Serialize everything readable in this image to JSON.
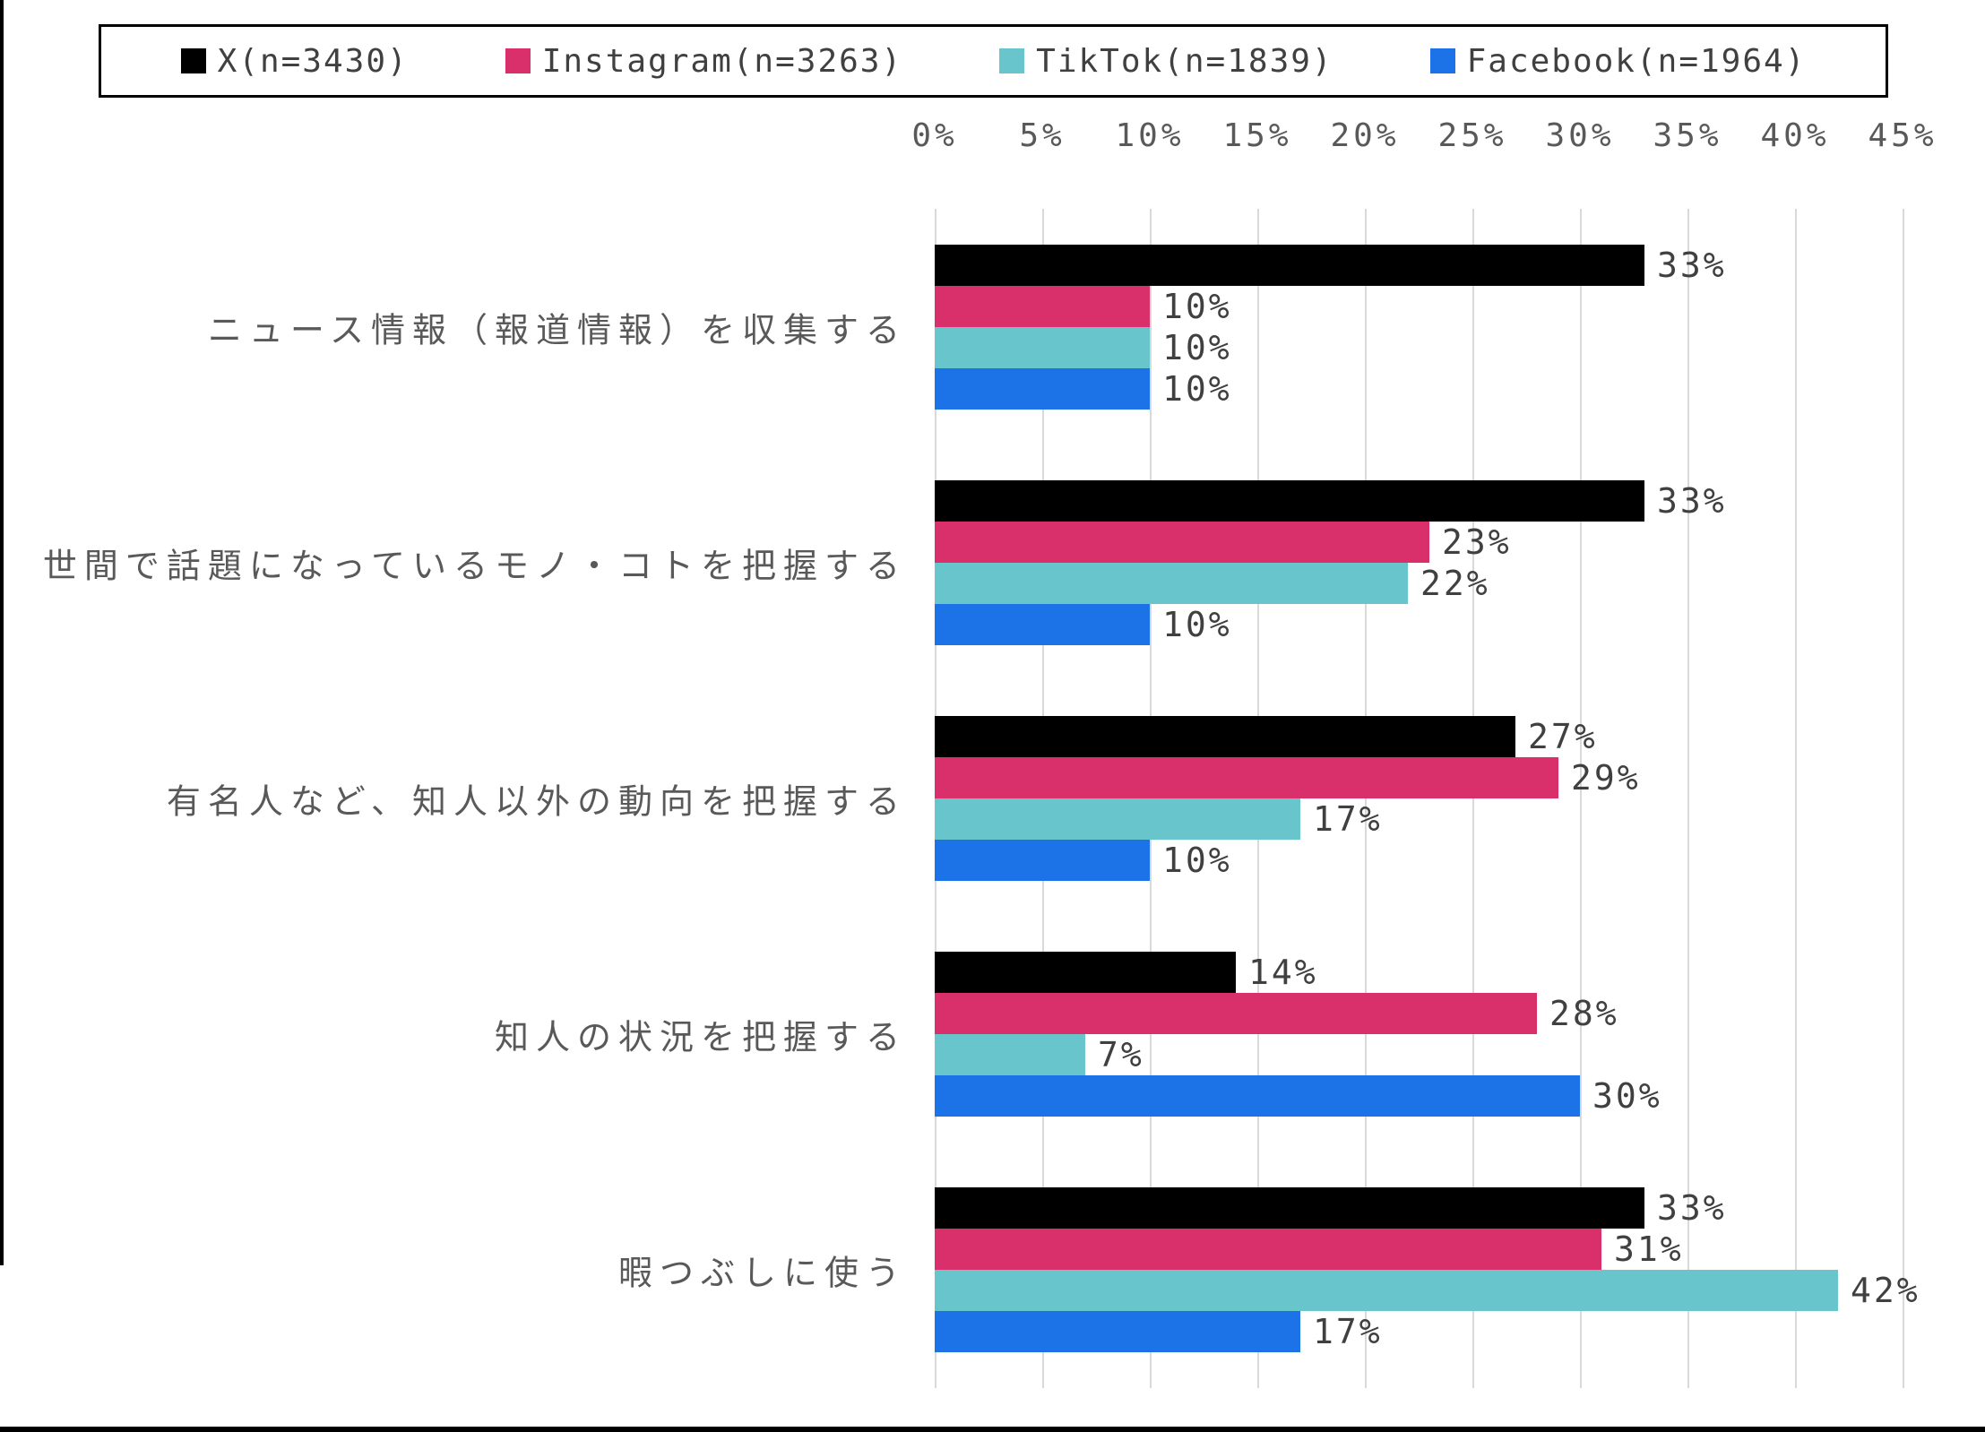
{
  "chart_data": {
    "type": "bar",
    "orientation": "horizontal",
    "title": "",
    "xlabel": "",
    "ylabel": "",
    "xlim": [
      0,
      45
    ],
    "grid": true,
    "legend_position": "top",
    "x_tick_labels": [
      "0%",
      "5%",
      "10%",
      "15%",
      "20%",
      "25%",
      "30%",
      "35%",
      "40%",
      "45%"
    ],
    "categories": [
      "ニュース情報（報道情報）を収集する",
      "世間で話題になっているモノ・コトを把握する",
      "有名人など、知人以外の動向を把握する",
      "知人の状況を把握する",
      "暇つぶしに使う"
    ],
    "series": [
      {
        "key": "x",
        "name": "X(n=3430)",
        "color": "#000000",
        "values": [
          33,
          33,
          27,
          14,
          33
        ]
      },
      {
        "key": "instagram",
        "name": "Instagram(n=3263)",
        "color": "#D9306B",
        "values": [
          10,
          23,
          29,
          28,
          31
        ]
      },
      {
        "key": "tiktok",
        "name": "TikTok(n=1839)",
        "color": "#68C5CB",
        "values": [
          10,
          22,
          17,
          7,
          42
        ]
      },
      {
        "key": "facebook",
        "name": "Facebook(n=1964)",
        "color": "#1C73E8",
        "values": [
          10,
          10,
          10,
          30,
          17
        ]
      }
    ],
    "data_labels": [
      [
        "33%",
        "10%",
        "10%",
        "10%"
      ],
      [
        "33%",
        "23%",
        "22%",
        "10%"
      ],
      [
        "27%",
        "29%",
        "17%",
        "10%"
      ],
      [
        "14%",
        "28%",
        "7%",
        "30%"
      ],
      [
        "33%",
        "31%",
        "42%",
        "17%"
      ]
    ]
  },
  "colors": {
    "background": "#FFFFFF",
    "frame": "#000000",
    "legend_border": "#000000",
    "legend_text": "#404040",
    "grid": "#D9D9D9",
    "tick_text": "#595959",
    "category_text": "#595959",
    "data_label_text": "#404040"
  }
}
